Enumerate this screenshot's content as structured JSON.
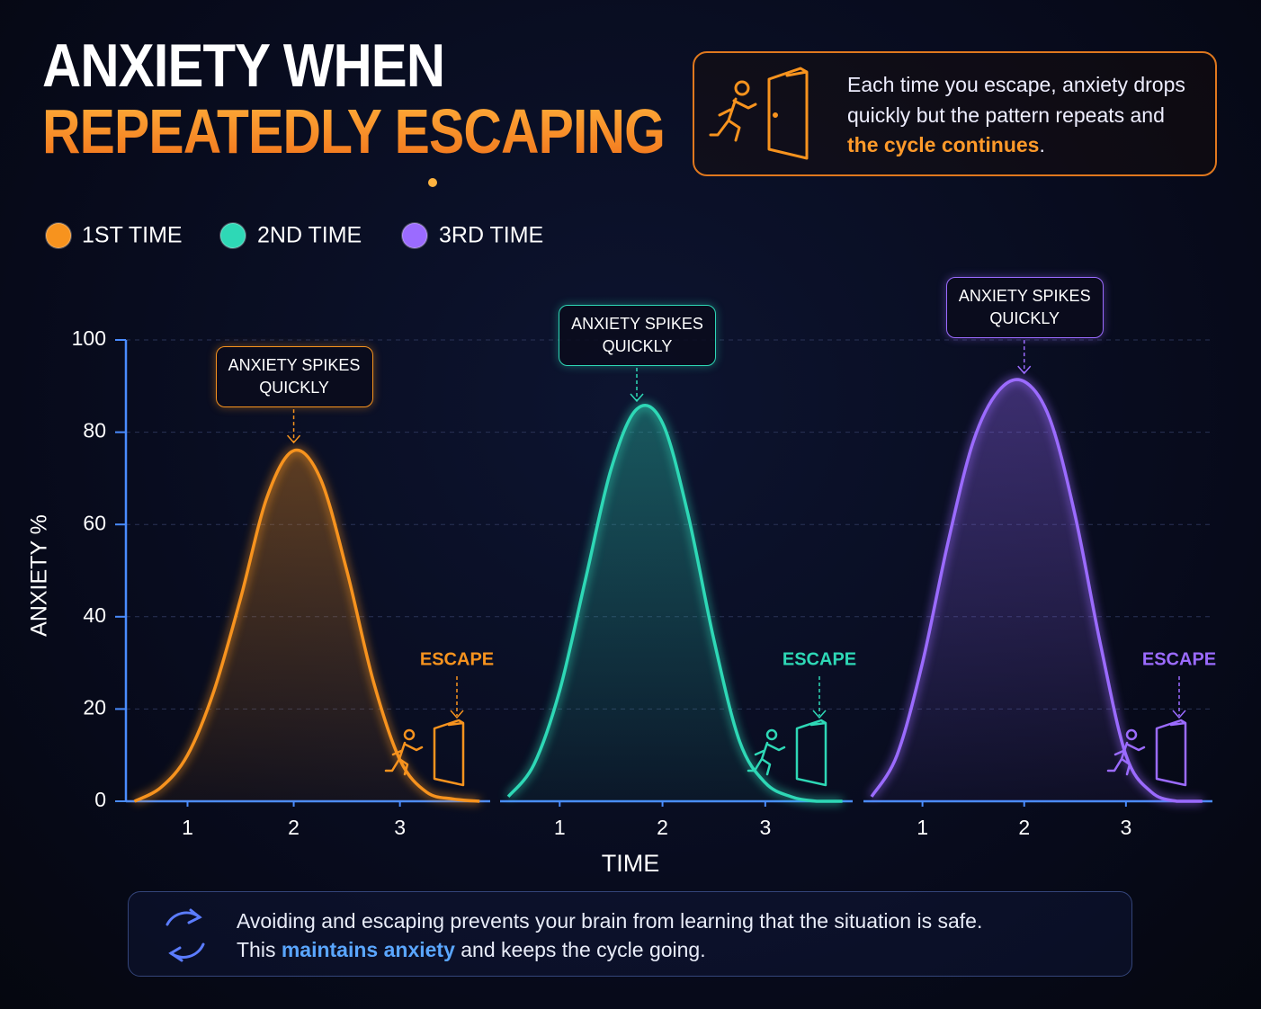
{
  "title_line1": "ANXIETY WHEN",
  "title_line2": "REPEATEDLY ESCAPING",
  "callout": [
    "Each time you escape, anxiety drops quickly but the pattern repeats and ",
    "the cycle continues",
    "."
  ],
  "footer": {
    "line1": "Avoiding and escaping prevents your brain from learning that the situation is safe.",
    "line2": [
      "This ",
      "maintains anxiety",
      " and keeps the cycle going."
    ]
  },
  "chart_data": {
    "type": "line",
    "ylabel": "ANXIETY %",
    "xlabel": "TIME",
    "x": [
      0.5,
      0.75,
      1,
      1.25,
      1.5,
      1.75,
      2,
      2.25,
      2.5,
      2.75,
      3,
      3.25,
      3.5,
      3.75
    ],
    "xlim": [
      0.42,
      3.85
    ],
    "xticks": [
      1,
      2,
      3
    ],
    "ylim": [
      0,
      100
    ],
    "yticks": [
      0,
      20,
      40,
      60,
      80,
      100
    ],
    "grid": true,
    "series": [
      {
        "name": "1ST TIME",
        "color": "#f7931e",
        "peak_label": "ANXIETY SPIKES QUICKLY",
        "escape_label": "ESCAPE",
        "values": [
          0,
          3,
          10,
          24,
          44,
          66,
          76,
          70,
          50,
          26,
          9,
          2,
          0.5,
          0
        ]
      },
      {
        "name": "2ND TIME",
        "color": "#2ed8b6",
        "peak_label": "ANXIETY SPIKES QUICKLY",
        "escape_label": "ESCAPE",
        "values": [
          1,
          8,
          24,
          48,
          72,
          85,
          82,
          62,
          35,
          13,
          4,
          1,
          0,
          0
        ]
      },
      {
        "name": "3RD TIME",
        "color": "#9b6bff",
        "peak_label": "ANXIETY SPIKES QUICKLY",
        "escape_label": "ESCAPE",
        "values": [
          1,
          10,
          30,
          56,
          78,
          89,
          91,
          83,
          62,
          34,
          10,
          2,
          0,
          0
        ]
      }
    ]
  }
}
